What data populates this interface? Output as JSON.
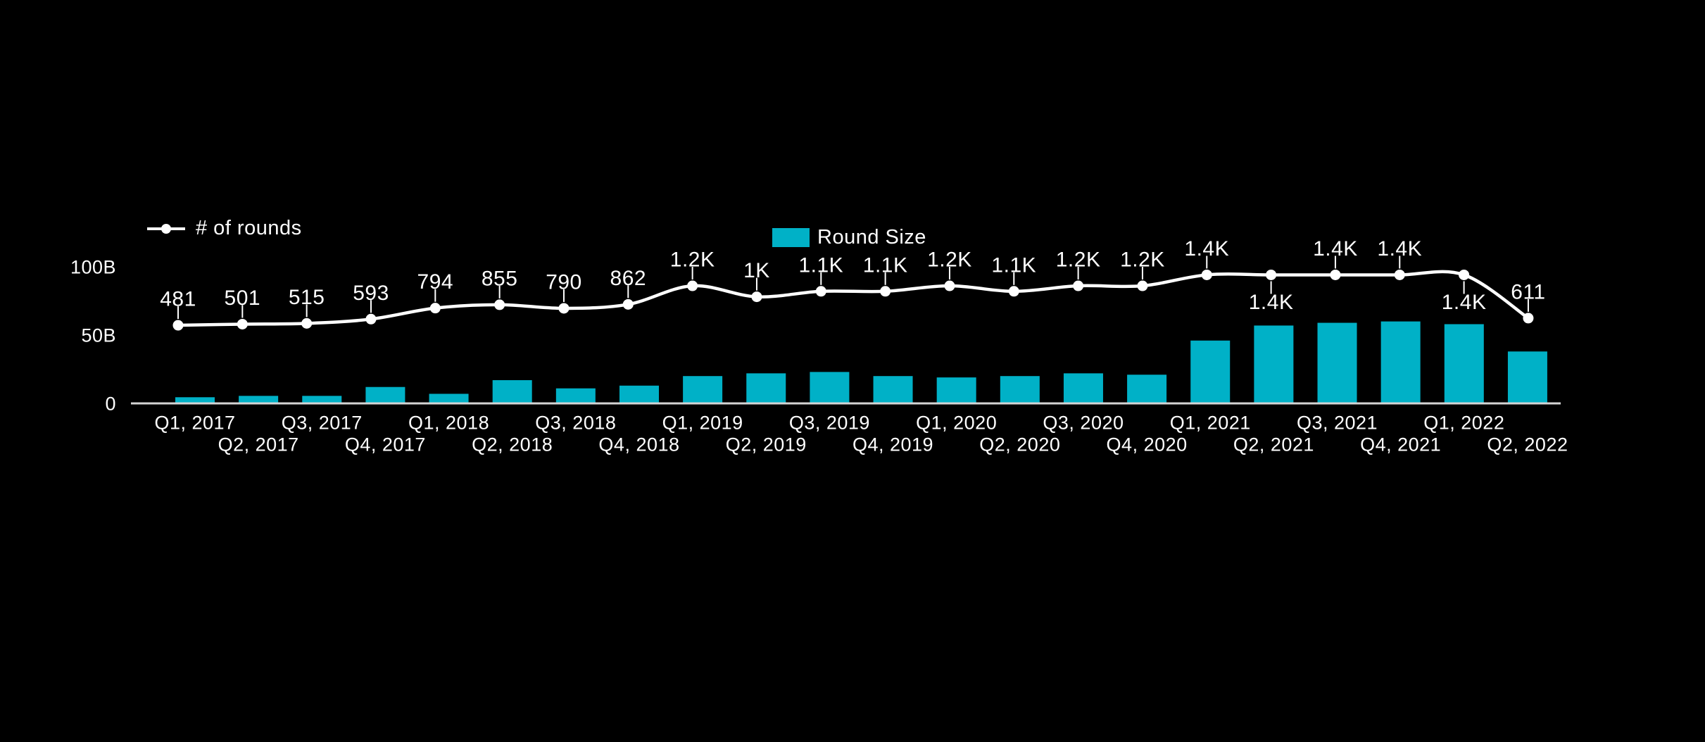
{
  "page": {
    "background": "#000000"
  },
  "colors": {
    "bar": "#00b1c7",
    "line": "#ffffff",
    "axis_line": "#d4d4d4",
    "text": "#ffffff"
  },
  "legend": {
    "rounds_label": "# of rounds",
    "round_size_label": "Round Size"
  },
  "chart_data": {
    "type": "bar+line",
    "background": "#000000",
    "grid": false,
    "legend_position": "top",
    "categories": [
      "Q1, 2017",
      "Q2, 2017",
      "Q3, 2017",
      "Q4, 2017",
      "Q1, 2018",
      "Q2, 2018",
      "Q3, 2018",
      "Q4, 2018",
      "Q1, 2019",
      "Q2, 2019",
      "Q3, 2019",
      "Q4, 2019",
      "Q1, 2020",
      "Q2, 2020",
      "Q3, 2020",
      "Q4, 2020",
      "Q1, 2021",
      "Q2, 2021",
      "Q3, 2021",
      "Q4, 2021",
      "Q1, 2022",
      "Q2, 2022"
    ],
    "x_axis": {
      "stagger": true
    },
    "y_axis": {
      "ticks": [
        {
          "label": "100B",
          "value": 100
        },
        {
          "label": "50B",
          "value": 50
        },
        {
          "label": "0",
          "value": 0
        }
      ],
      "max": 100,
      "unit": "B"
    },
    "series": [
      {
        "name": "Round Size",
        "type": "bar",
        "unit": "billions USD",
        "values": [
          4.5,
          5.5,
          5.5,
          12,
          7,
          17,
          11,
          13,
          20,
          22,
          23,
          20,
          19,
          20,
          22,
          21,
          46,
          57,
          59,
          60,
          58,
          38
        ]
      },
      {
        "name": "# of rounds",
        "type": "line",
        "values": [
          481,
          501,
          515,
          593,
          794,
          855,
          790,
          862,
          1200,
          1000,
          1100,
          1100,
          1200,
          1100,
          1200,
          1200,
          1400,
          1400,
          1400,
          1400,
          1400,
          611
        ],
        "point_labels": [
          "481",
          "501",
          "515",
          "593",
          "794",
          "855",
          "790",
          "862",
          "1.2K",
          "1K",
          "1.1K",
          "1.1K",
          "1.2K",
          "1.1K",
          "1.2K",
          "1.2K",
          "1.4K",
          "1.4K",
          "1.4K",
          "1.4K",
          "1.4K",
          "611"
        ],
        "label_position": [
          "above",
          "above",
          "above",
          "above",
          "above",
          "above",
          "above",
          "above",
          "above",
          "above",
          "above",
          "above",
          "above",
          "above",
          "above",
          "above",
          "above",
          "below",
          "above",
          "above",
          "below",
          "above"
        ]
      }
    ]
  }
}
